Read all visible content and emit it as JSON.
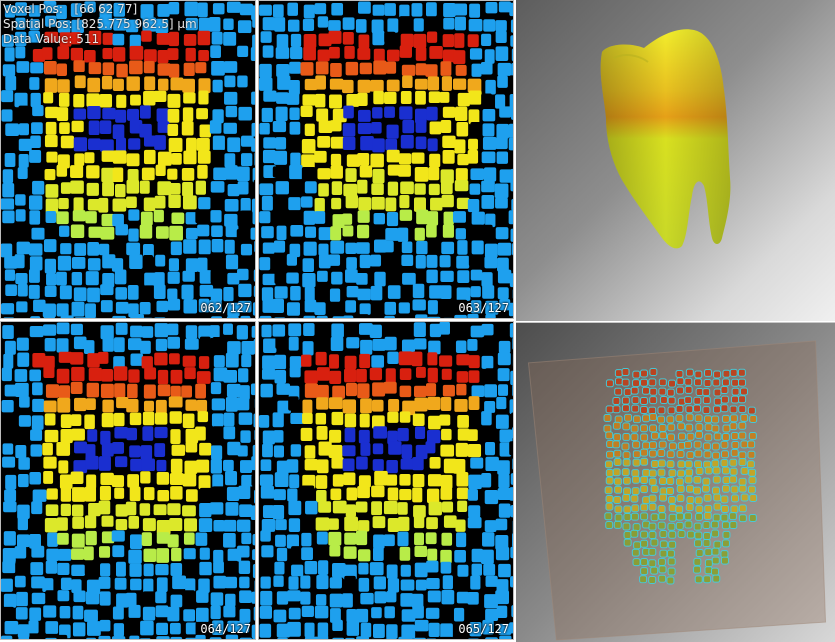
{
  "overlay": {
    "voxel_pos": "Voxel Pos:   [66 62 77]",
    "spatial_pos": "Spatial Pos: [825.775 962.5] µm",
    "data_value": "Data Value: 511"
  },
  "slices": [
    {
      "label": "062/127"
    },
    {
      "label": "063/127"
    },
    {
      "label": "064/127"
    },
    {
      "label": "065/127"
    }
  ],
  "colors": {
    "background_cell": "#1ea0ee",
    "pulp": "#1a2fd0",
    "crown_top": "#e01e0e",
    "crown_mid": "#f5e81a",
    "root": "#c8f040",
    "gap": "#000000",
    "surface_tooth": "#e2e02a"
  },
  "views": {
    "surface_render": "3d-surface-render",
    "volume_render": "3d-volume-render"
  }
}
